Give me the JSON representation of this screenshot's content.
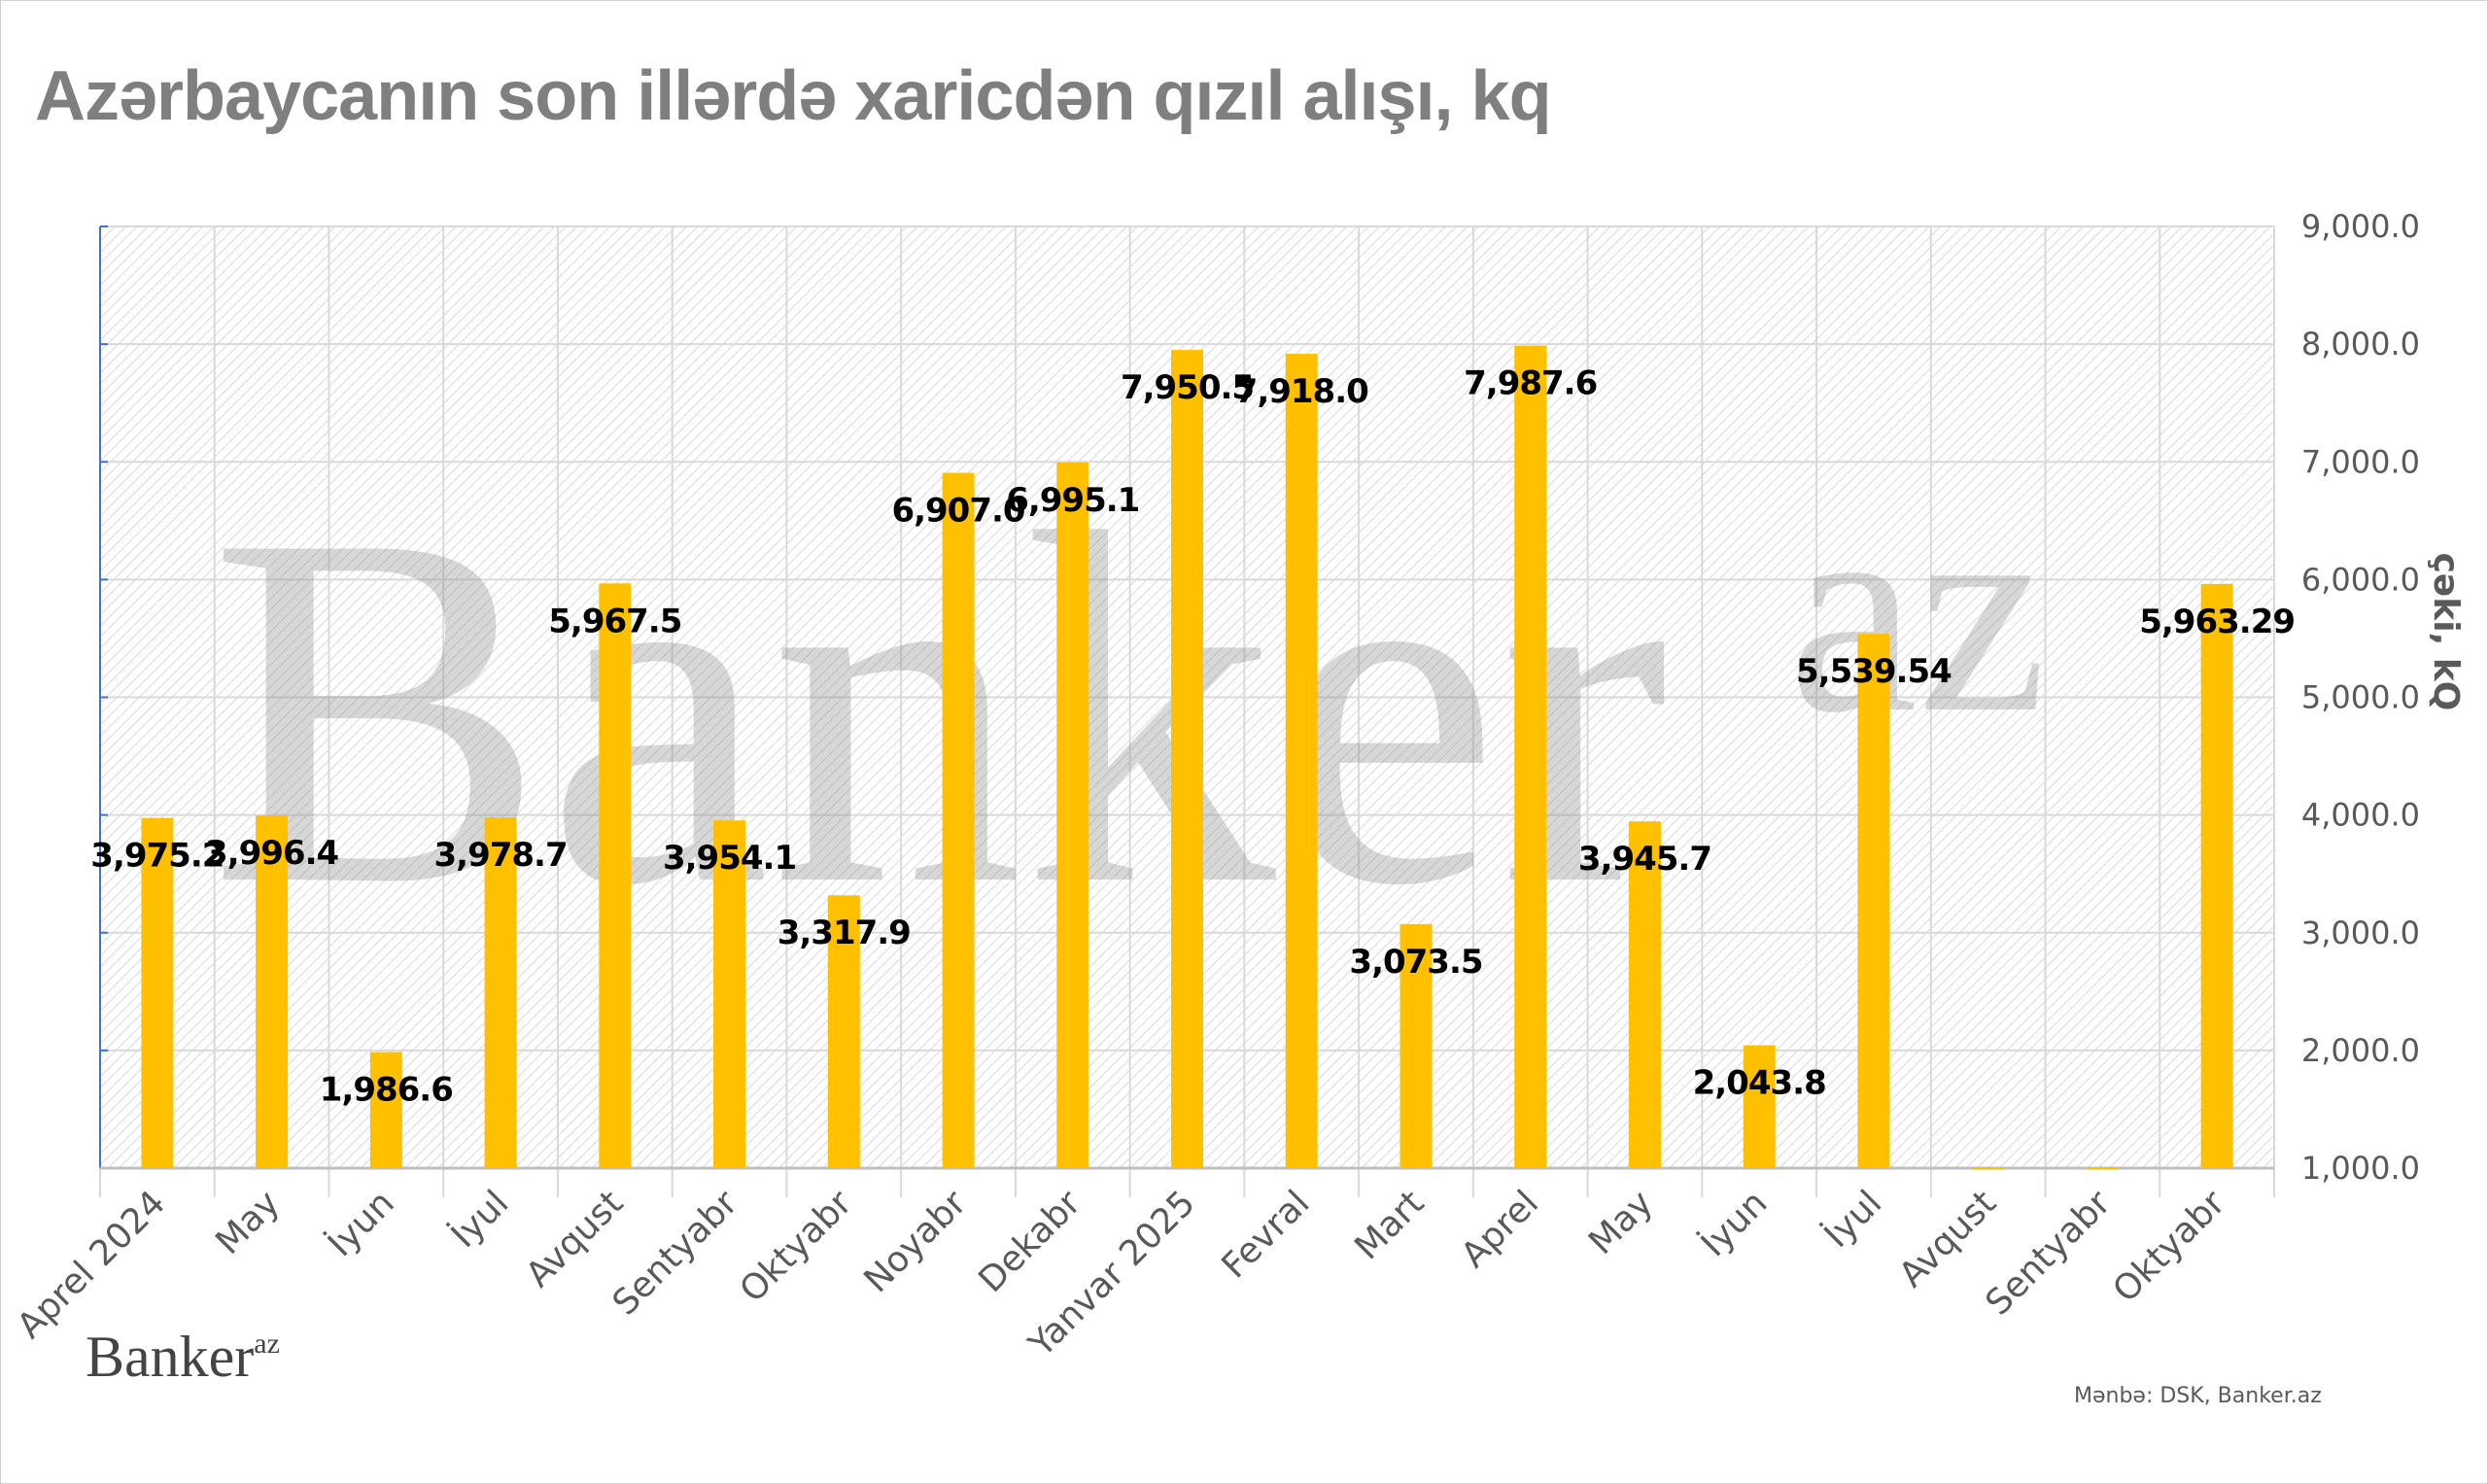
{
  "title": "Azərbaycanın son illərdə xaricdən qızıl alışı, kq",
  "chart_data": {
    "type": "bar",
    "title": "Azərbaycanın son illərdə xaricdən qızıl alışı, kq",
    "categories": [
      "Aprel  2024",
      "May",
      "İyun",
      "İyul",
      "Avqust",
      "Sentyabr",
      "Oktyabr",
      "Noyabr",
      "Dekabr",
      "Yanvar 2025",
      "Fevral",
      "Mart",
      "Aprel",
      "May",
      "İyun",
      "İyul",
      "Avqust",
      "Sentyabr",
      "Oktyabr"
    ],
    "values": [
      3975.2,
      3996.4,
      1986.6,
      3978.7,
      5967.5,
      3954.1,
      3317.9,
      6907.0,
      6995.1,
      7950.5,
      7918.0,
      3073.5,
      7987.6,
      3945.7,
      2043.8,
      5539.54,
      null,
      null,
      5963.29
    ],
    "data_labels": [
      "3,975.2",
      "3,996.4",
      "1,986.6",
      "3,978.7",
      "5,967.5",
      "3,954.1",
      "3,317.9",
      "6,907.0",
      "6,995.1",
      "7,950.5",
      "7,918.0",
      "3,073.5",
      "7,987.6",
      "3,945.7",
      "2,043.8",
      "5,539.54",
      "",
      "",
      "5,963.29"
    ],
    "ylabel": "çəki, kQ",
    "xlabel": "",
    "ylim": [
      1000,
      9000
    ],
    "yticks": [
      1000,
      2000,
      3000,
      4000,
      5000,
      6000,
      7000,
      8000,
      9000
    ],
    "ytick_labels": [
      "1,000.0",
      "2,000.0",
      "3,000.0",
      "4,000.0",
      "5,000.0",
      "6,000.0",
      "7,000.0",
      "8,000.0",
      "9,000.0"
    ],
    "y_axis_position": "right",
    "grid": true,
    "bar_color": "#FFC000",
    "watermark": "Banker.az"
  },
  "logo": {
    "main": "Banker",
    "sup": "az"
  },
  "source": "Mənbə: DSK, Banker.az"
}
